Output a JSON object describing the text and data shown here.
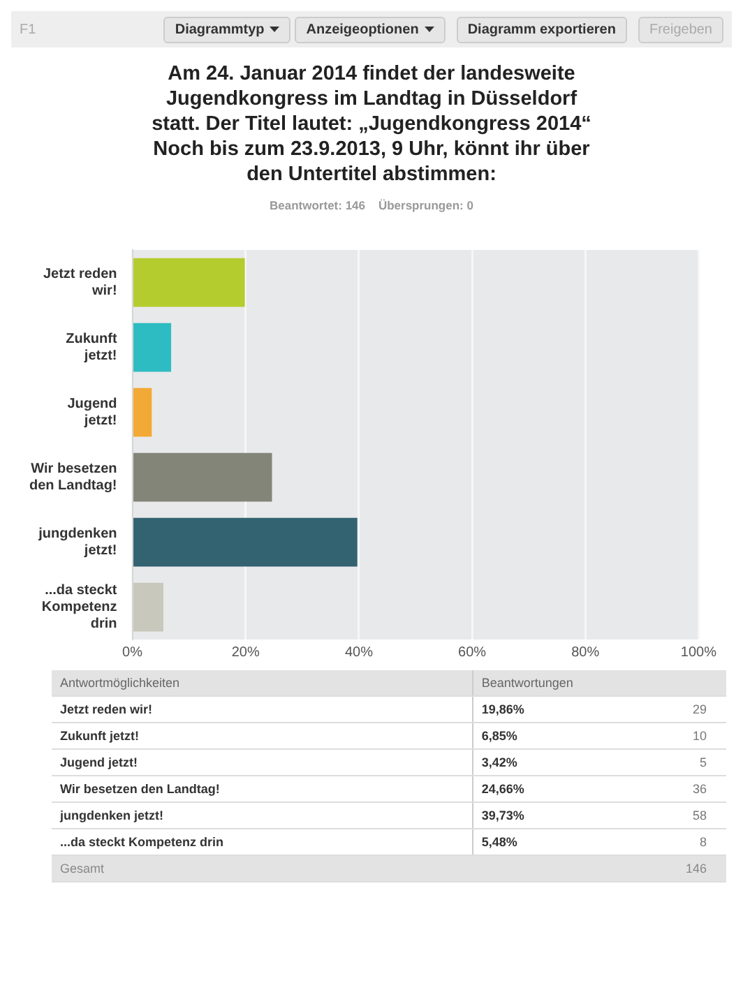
{
  "chart_data": {
    "type": "bar",
    "orientation": "horizontal",
    "title": "Am 24. Januar 2014 findet der landesweite Jugendkongress im Landtag in Düsseldorf statt. Der Titel lautet: „Jugendkongress 2014“ Noch bis zum 23.9.2013, 9 Uhr, könnt ihr über den Untertitel abstimmen:",
    "subtitle": "Beantwortet: 146    Übersprungen: 0",
    "categories": [
      "Jetzt reden wir!",
      "Zukunft jetzt!",
      "Jugend jetzt!",
      "Wir besetzen den Landtag!",
      "jungdenken jetzt!",
      "...da steckt Kompetenz drin"
    ],
    "values": [
      19.86,
      6.85,
      3.42,
      24.66,
      39.73,
      5.48
    ],
    "colors": [
      "#b5cc2e",
      "#2dbcc1",
      "#f3a935",
      "#838578",
      "#336271",
      "#c9c8bc"
    ],
    "xlim": [
      0,
      100
    ],
    "xticks": [
      {
        "value": 0,
        "label": "0%"
      },
      {
        "value": 20,
        "label": "20%"
      },
      {
        "value": 40,
        "label": "40%"
      },
      {
        "value": 60,
        "label": "60%"
      },
      {
        "value": 80,
        "label": "80%"
      },
      {
        "value": 100,
        "label": "100%"
      }
    ],
    "grid": "x",
    "annotations": [
      "F1",
      "Diagrammtyp",
      "Anzeigeoptionen",
      "Diagramm exportieren",
      "Freigeben",
      "Antwortmöglichkeiten",
      "Beantwortungen",
      "Gesamt",
      "146",
      "29",
      "10",
      "5",
      "36",
      "58",
      "8",
      "19,86%",
      "6,85%",
      "3,42%",
      "24,66%",
      "39,73%",
      "5,48%"
    ]
  }
}
